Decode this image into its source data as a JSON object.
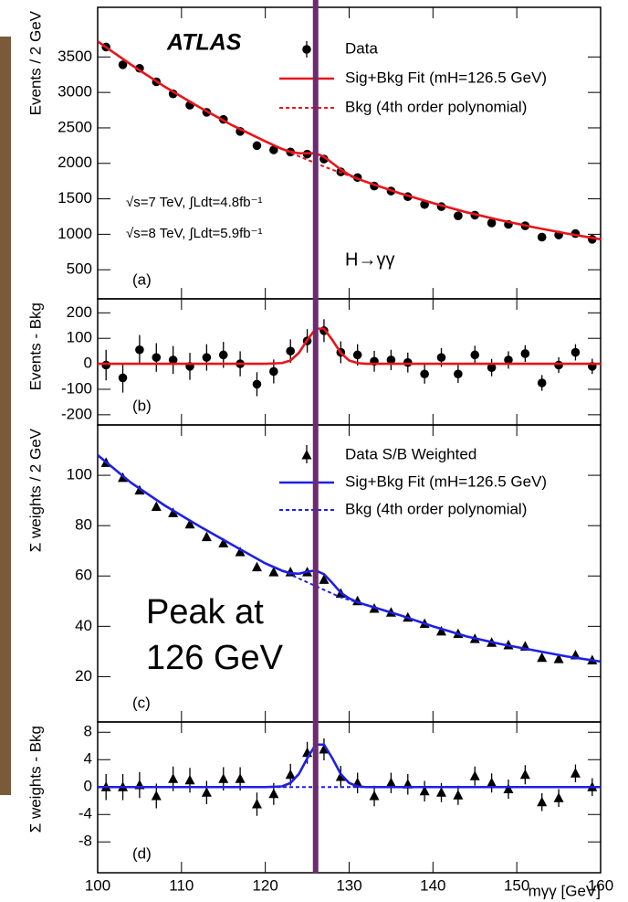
{
  "marker_line": {
    "x": 126,
    "color": "#6d2b70"
  },
  "chart_data": [
    {
      "type": "scatter",
      "panel_label": "(a)",
      "ylabel": "Events / 2 GeV",
      "ylim": [
        90,
        4200
      ],
      "yticks": [
        500,
        1000,
        1500,
        2000,
        2500,
        3000,
        3500
      ],
      "annotations": [
        "ATLAS",
        "√s=7 TeV, ∫Ldt=4.8fb⁻¹",
        "√s=8 TeV, ∫Ldt=5.9fb⁻¹",
        "H→γγ"
      ],
      "series": [
        {
          "name": "Data",
          "color": "#000000",
          "marker": "circle",
          "x": [
            101,
            103,
            105,
            107,
            109,
            111,
            113,
            115,
            117,
            119,
            121,
            123,
            125,
            127,
            129,
            131,
            133,
            135,
            137,
            139,
            141,
            143,
            145,
            147,
            149,
            151,
            153,
            155,
            157,
            159
          ],
          "values": [
            3640,
            3390,
            3340,
            3150,
            2980,
            2820,
            2720,
            2620,
            2450,
            2250,
            2190,
            2160,
            2130,
            2060,
            1880,
            1800,
            1680,
            1610,
            1530,
            1420,
            1390,
            1260,
            1270,
            1160,
            1140,
            1120,
            960,
            990,
            1010,
            930
          ]
        },
        {
          "name": "Sig+Bkg Fit  (mH=126.5 GeV)",
          "color": "#e8141b",
          "x": [
            100,
            104,
            108,
            112,
            116,
            120,
            122,
            123,
            124,
            125,
            126,
            127,
            128,
            129,
            130,
            131,
            132,
            136,
            140,
            144,
            148,
            152,
            156,
            160
          ],
          "values": [
            3720,
            3390,
            3080,
            2800,
            2540,
            2310,
            2203,
            2163,
            2143,
            2143,
            2143,
            2093,
            2003,
            1913,
            1838,
            1783,
            1740,
            1580,
            1440,
            1310,
            1200,
            1100,
            1010,
            930
          ]
        },
        {
          "name": "Bkg (4th order polynomial)",
          "color": "#e8141b",
          "dash": true,
          "x": [
            100,
            104,
            108,
            112,
            116,
            120,
            122,
            123,
            124,
            125,
            126,
            127,
            128,
            129,
            130,
            131,
            132,
            136,
            140,
            144,
            148,
            152,
            156,
            160
          ],
          "values": [
            3720,
            3390,
            3080,
            2800,
            2540,
            2310,
            2200,
            2150,
            2100,
            2050,
            2005,
            1955,
            1910,
            1870,
            1825,
            1780,
            1740,
            1580,
            1440,
            1310,
            1200,
            1100,
            1010,
            930
          ]
        }
      ]
    },
    {
      "type": "scatter",
      "panel_label": "(b)",
      "ylabel": "Events - Bkg",
      "ylim": [
        -240,
        255
      ],
      "yticks": [
        -200,
        -100,
        0,
        100,
        200
      ],
      "series": [
        {
          "color": "#000000",
          "marker": "circle",
          "x": [
            101,
            103,
            105,
            107,
            109,
            111,
            113,
            115,
            117,
            119,
            121,
            123,
            125,
            127,
            129,
            131,
            133,
            135,
            137,
            139,
            141,
            143,
            145,
            147,
            149,
            151,
            153,
            155,
            157,
            159
          ],
          "values": [
            -5,
            -55,
            55,
            25,
            15,
            -10,
            25,
            35,
            0,
            -80,
            -30,
            50,
            90,
            130,
            45,
            35,
            10,
            15,
            5,
            -40,
            25,
            -40,
            35,
            -15,
            15,
            40,
            -75,
            -5,
            45,
            -10
          ],
          "errors": [
            60,
            58,
            58,
            56,
            55,
            53,
            52,
            51,
            49,
            47,
            47,
            46,
            46,
            45,
            43,
            42,
            41,
            40,
            39,
            38,
            37,
            35,
            36,
            34,
            34,
            33,
            31,
            31,
            32,
            30
          ]
        },
        {
          "color": "#e8141b",
          "x": [
            100,
            104,
            108,
            112,
            116,
            120,
            122,
            123,
            124,
            125,
            126,
            127,
            128,
            129,
            130,
            131,
            132,
            136,
            140,
            144,
            148,
            152,
            156,
            160
          ],
          "values": [
            0,
            0,
            0,
            0,
            0,
            0,
            3,
            13,
            43,
            93,
            138,
            138,
            93,
            43,
            13,
            3,
            0,
            0,
            0,
            0,
            0,
            0,
            0,
            0
          ]
        }
      ]
    },
    {
      "type": "scatter",
      "panel_label": "(c)",
      "ylabel": "Σ weights / 2 GeV",
      "ylim": [
        2,
        120
      ],
      "yticks": [
        20,
        40,
        60,
        80,
        100
      ],
      "annotations": [
        "Peak at",
        "126 GeV"
      ],
      "series": [
        {
          "name": "Data S/B Weighted",
          "color": "#000000",
          "marker": "triangle",
          "x": [
            101,
            103,
            105,
            107,
            109,
            111,
            113,
            115,
            117,
            119,
            121,
            123,
            125,
            127,
            129,
            131,
            133,
            135,
            137,
            139,
            141,
            143,
            145,
            147,
            149,
            151,
            153,
            155,
            157,
            159
          ],
          "values": [
            105,
            99,
            94,
            87.5,
            85,
            80.5,
            75.5,
            73,
            69.5,
            63.5,
            61.5,
            61.5,
            61.5,
            58.5,
            53,
            50,
            47,
            45.5,
            43.5,
            41,
            38,
            37,
            35,
            33.5,
            32.5,
            32,
            27.5,
            27,
            28.5,
            26.5
          ]
        },
        {
          "name": "Sig+Bkg Fit  (mH=126.5 GeV)",
          "color": "#1f1fe6",
          "x": [
            100,
            104,
            108,
            112,
            116,
            120,
            122,
            123,
            124,
            125,
            126,
            127,
            128,
            129,
            130,
            131,
            132,
            136,
            140,
            144,
            148,
            152,
            156,
            160
          ],
          "values": [
            108,
            97,
            88,
            80,
            72.5,
            65,
            62.1,
            61.1,
            60.9,
            61.7,
            62.2,
            60.7,
            57.2,
            53.4,
            51.1,
            49.6,
            48.5,
            44.5,
            40,
            36,
            33,
            30.5,
            28,
            26
          ]
        },
        {
          "name": "Bkg (4th order polynomial)",
          "color": "#1f1fe6",
          "dash": true,
          "x": [
            100,
            104,
            108,
            112,
            116,
            120,
            122,
            123,
            124,
            125,
            126,
            127,
            128,
            129,
            130,
            131,
            132,
            136,
            140,
            144,
            148,
            152,
            156,
            160
          ],
          "values": [
            108,
            97,
            88,
            80,
            72.5,
            65,
            62,
            60.5,
            59,
            57.5,
            56,
            54.5,
            53,
            51.5,
            50.5,
            49.5,
            48.5,
            44.5,
            40,
            36,
            33,
            30.5,
            28,
            26
          ]
        }
      ]
    },
    {
      "type": "scatter",
      "panel_label": "(d)",
      "ylabel": "Σ weights - Bkg",
      "ylim": [
        -12.5,
        9.5
      ],
      "yticks": [
        -8,
        -4,
        0,
        4,
        8
      ],
      "xlim": [
        100,
        160
      ],
      "xticks": [
        100,
        110,
        120,
        130,
        140,
        150,
        160
      ],
      "xlabel": "mγγ [GeV]",
      "series": [
        {
          "color": "#000000",
          "marker": "triangle",
          "x": [
            101,
            103,
            105,
            107,
            109,
            111,
            113,
            115,
            117,
            119,
            121,
            123,
            125,
            127,
            129,
            131,
            133,
            135,
            137,
            139,
            141,
            143,
            145,
            147,
            149,
            151,
            153,
            155,
            157,
            159
          ],
          "values": [
            0,
            0,
            0.3,
            -1.3,
            1.2,
            1,
            -0.8,
            1.2,
            1.2,
            -2.5,
            -1,
            1.8,
            5,
            5.5,
            1.5,
            0.6,
            -1.3,
            0.6,
            0.4,
            -0.6,
            -0.8,
            -1.2,
            1.6,
            0.6,
            -0.3,
            1.8,
            -2.2,
            -1.6,
            2,
            0
          ],
          "errors": [
            1.9,
            1.9,
            1.9,
            1.8,
            1.8,
            1.8,
            1.7,
            1.7,
            1.7,
            1.7,
            1.6,
            1.6,
            1.6,
            1.6,
            1.6,
            1.5,
            1.5,
            1.5,
            1.5,
            1.5,
            1.4,
            1.4,
            1.4,
            1.4,
            1.4,
            1.4,
            1.3,
            1.3,
            1.3,
            1.3
          ]
        },
        {
          "color": "#1f1fe6",
          "dash": true,
          "x": [
            100,
            160
          ],
          "values": [
            0,
            0
          ]
        },
        {
          "color": "#1f1fe6",
          "x": [
            100,
            104,
            108,
            112,
            116,
            120,
            122,
            123,
            124,
            125,
            126,
            127,
            128,
            129,
            130,
            131,
            132,
            136,
            140,
            144,
            148,
            152,
            156,
            160
          ],
          "values": [
            0,
            0,
            0,
            0,
            0,
            0,
            0.1,
            0.6,
            1.9,
            4.2,
            6.2,
            6.2,
            4.2,
            1.9,
            0.6,
            0.1,
            0,
            0,
            0,
            0,
            0,
            0,
            0,
            0
          ]
        }
      ]
    }
  ]
}
